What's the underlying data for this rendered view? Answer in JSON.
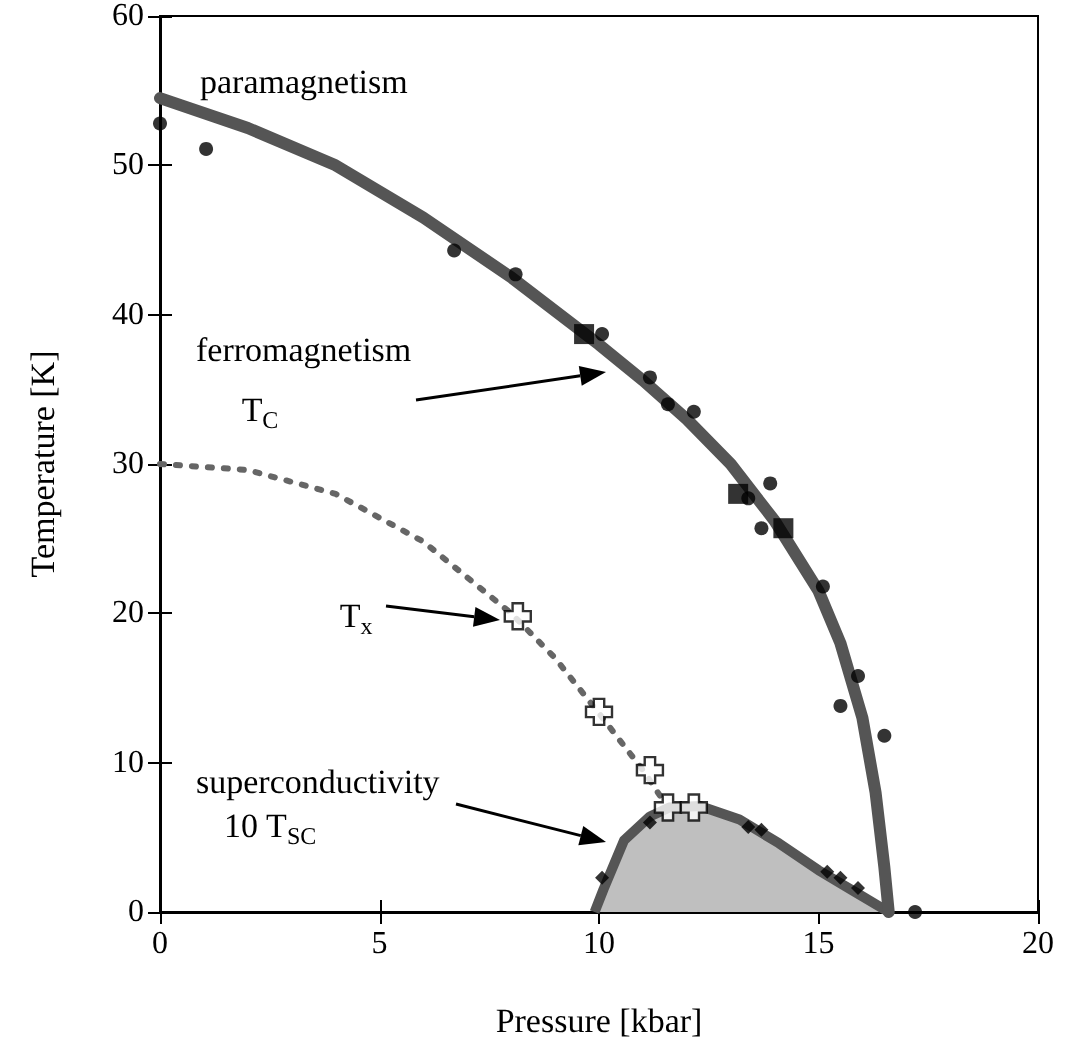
{
  "chart_data": {
    "type": "scatter",
    "xlabel": "Pressure [kbar]",
    "ylabel": "Temperature [K]",
    "xlim": [
      0,
      20
    ],
    "xticks": [
      0,
      5,
      10,
      15,
      20
    ],
    "ylim": [
      0,
      60
    ],
    "yticks": [
      0,
      10,
      20,
      30,
      40,
      50,
      60
    ],
    "grid": false,
    "series": [
      {
        "type": "area",
        "color": "#bfbfbf",
        "x": [
          9.9,
          10.1,
          10.57,
          11.16,
          11.6,
          12.3,
          13.2,
          14.1,
          15.0,
          15.8,
          16.6
        ],
        "values": [
          0,
          1.5,
          4.8,
          6.4,
          7.0,
          7.1,
          6.2,
          4.6,
          2.8,
          1.4,
          0
        ]
      },
      {
        "type": "line",
        "color": "#555555",
        "line_style": "solid",
        "x": [
          0,
          2,
          4,
          6,
          8,
          10,
          11,
          12,
          13,
          14,
          15,
          15.5,
          16,
          16.3,
          16.5,
          16.6
        ],
        "values": [
          54.5,
          52.5,
          50,
          46.5,
          42.5,
          38,
          35.6,
          33,
          30,
          26.2,
          21.5,
          18,
          13,
          8,
          3,
          0
        ]
      },
      {
        "type": "line",
        "color": "#666666",
        "line_style": "dotted",
        "x": [
          0,
          2,
          4,
          6,
          8,
          9,
          10,
          11,
          11.5
        ],
        "values": [
          30,
          29.6,
          28,
          24.8,
          20,
          17,
          13.3,
          9.5,
          7.3
        ]
      },
      {
        "marker": "circle",
        "color": "#000000",
        "x": [
          0,
          1.05,
          6.7,
          8.1,
          10.07,
          11.16,
          11.57,
          12.16,
          13.4,
          13.7,
          13.9,
          15.1,
          15.5,
          15.9,
          16.5,
          17.2
        ],
        "values": [
          52.8,
          51.1,
          44.3,
          42.7,
          38.7,
          35.8,
          34.0,
          33.5,
          27.7,
          25.7,
          28.7,
          21.8,
          13.8,
          15.8,
          11.8,
          0
        ]
      },
      {
        "marker": "square",
        "color": "#000000",
        "x": [
          9.66,
          13.17,
          14.2
        ],
        "values": [
          38.7,
          28.0,
          25.7
        ]
      },
      {
        "marker": "cross",
        "color": "#ffffff",
        "x": [
          8.15,
          10.0,
          11.16,
          11.57,
          12.16
        ],
        "values": [
          19.8,
          13.4,
          9.5,
          7.0,
          7.0
        ]
      },
      {
        "marker": "diamond",
        "color": "#000000",
        "x": [
          10.07,
          11.16,
          13.4,
          13.7,
          15.2,
          15.5,
          15.9
        ],
        "values": [
          2.3,
          6.0,
          5.7,
          5.5,
          2.7,
          2.3,
          1.6
        ]
      }
    ],
    "annotations": [
      "paramagnetism",
      "ferromagnetism",
      "T$_{C}$",
      "T$_{x}$",
      "superconductivity",
      "10 T$_{SC}$"
    ]
  }
}
